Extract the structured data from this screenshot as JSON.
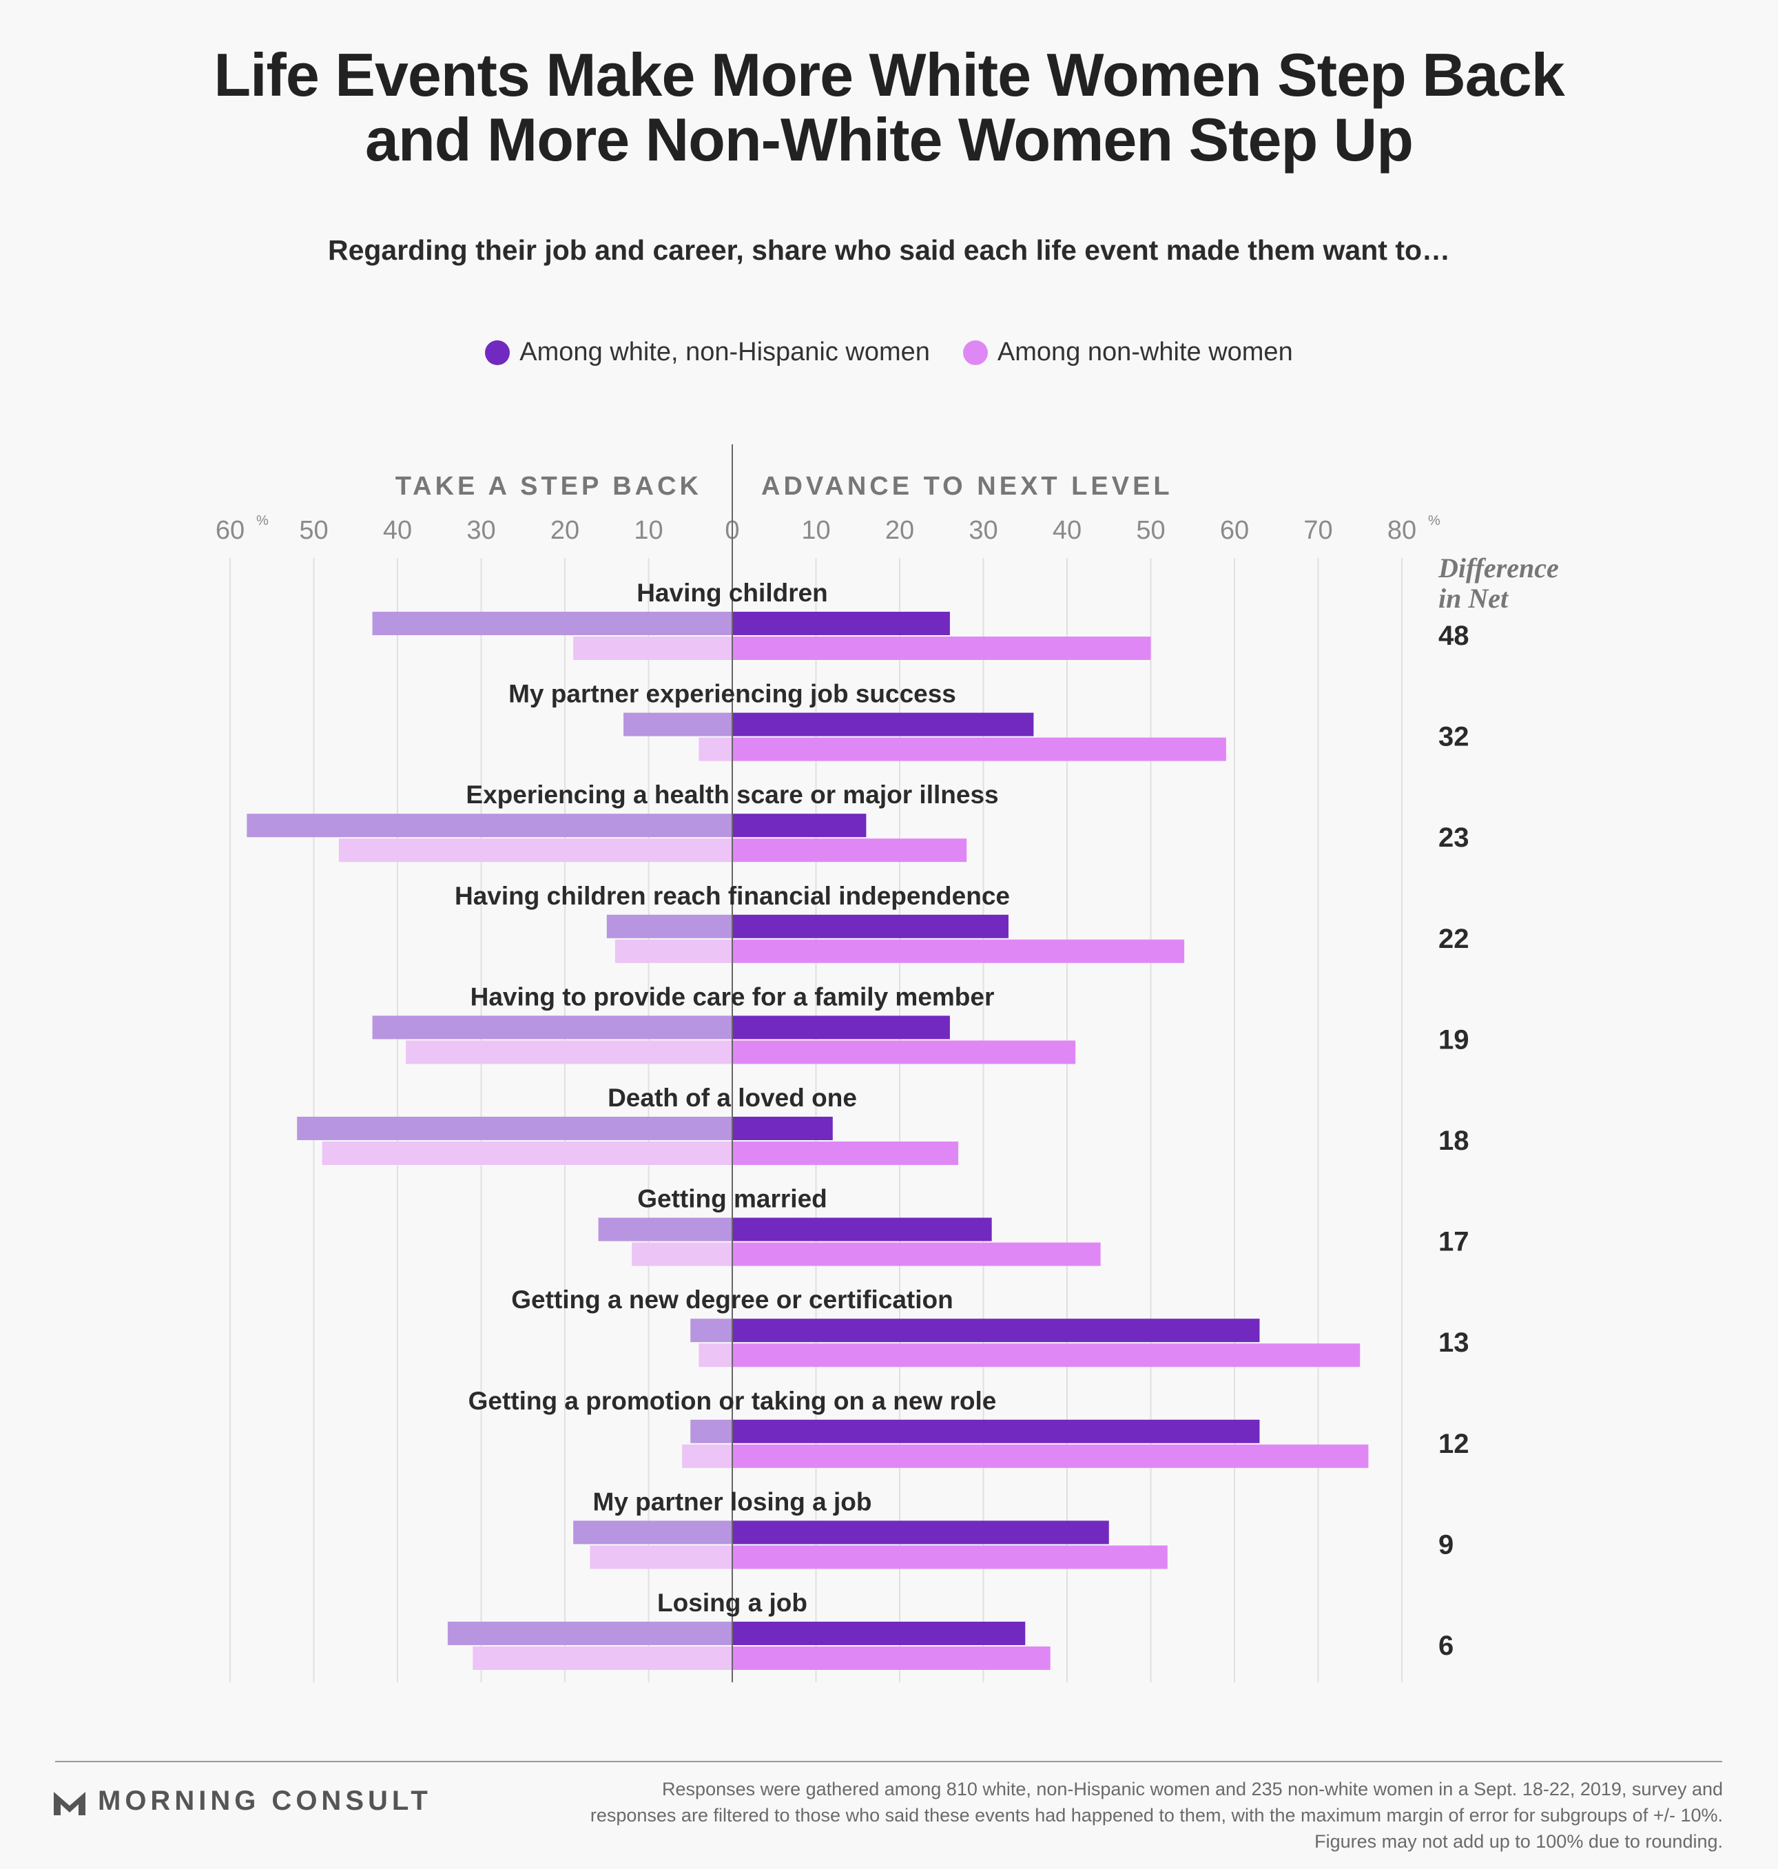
{
  "title_line1": "Life Events Make More White Women Step Back",
  "title_line2": "and More Non-White Women Step Up",
  "subtitle": "Regarding their job and career, share who said each life event made them want to…",
  "legend": [
    {
      "label": "Among white, non-Hispanic women",
      "color": "#7229bf"
    },
    {
      "label": "Among non-white women",
      "color": "#df88f5"
    }
  ],
  "footer": {
    "brand": "MORNING CONSULT",
    "note_line1": "Responses were gathered among 810 white, non-Hispanic women and 235 non-white women in a Sept. 18-22, 2019, survey and",
    "note_line2": "responses are filtered to those who said these events had happened to them, with the maximum margin of error for subgroups of +/- 10%.",
    "note_line3": "Figures may not add up to 100% due to rounding."
  },
  "chart_data": {
    "type": "bar",
    "orientation": "horizontal-diverging",
    "left_header": "TAKE A STEP BACK",
    "right_header": "ADVANCE TO NEXT LEVEL",
    "left_ticks": [
      "60",
      "50",
      "40",
      "30",
      "20",
      "10"
    ],
    "right_ticks": [
      "0",
      "10",
      "20",
      "30",
      "40",
      "50",
      "60",
      "70",
      "80"
    ],
    "tick_unit": "%",
    "xlim_left": [
      0,
      60
    ],
    "xlim_right": [
      0,
      80
    ],
    "net_header_line1": "Difference",
    "net_header_line2": "in Net",
    "colors": {
      "white_back": "#b895e0",
      "white_advance": "#7229bf",
      "nonwhite_back": "#ecc4f6",
      "nonwhite_advance": "#df88f5"
    },
    "categories": [
      "Having children",
      "My partner experiencing job success",
      "Experiencing a health scare or major illness",
      "Having children reach financial independence",
      "Having to provide care for a family member",
      "Death of a loved one",
      "Getting married",
      "Getting a new degree or certification",
      "Getting a promotion or taking on a new role",
      "My partner losing a job",
      "Losing a job"
    ],
    "series": [
      {
        "name": "Among white, non-Hispanic women",
        "step_back": [
          43,
          13,
          58,
          15,
          43,
          52,
          16,
          5,
          5,
          19,
          34
        ],
        "advance": [
          26,
          36,
          16,
          33,
          26,
          12,
          31,
          63,
          63,
          45,
          35
        ]
      },
      {
        "name": "Among non-white women",
        "step_back": [
          19,
          4,
          47,
          14,
          39,
          49,
          12,
          4,
          6,
          17,
          31
        ],
        "advance": [
          50,
          59,
          28,
          54,
          41,
          27,
          44,
          75,
          76,
          52,
          38
        ]
      }
    ],
    "difference_in_net": [
      "48",
      "32",
      "23",
      "22",
      "19",
      "18",
      "17",
      "13",
      "12",
      "9",
      "6"
    ],
    "grid": true
  }
}
